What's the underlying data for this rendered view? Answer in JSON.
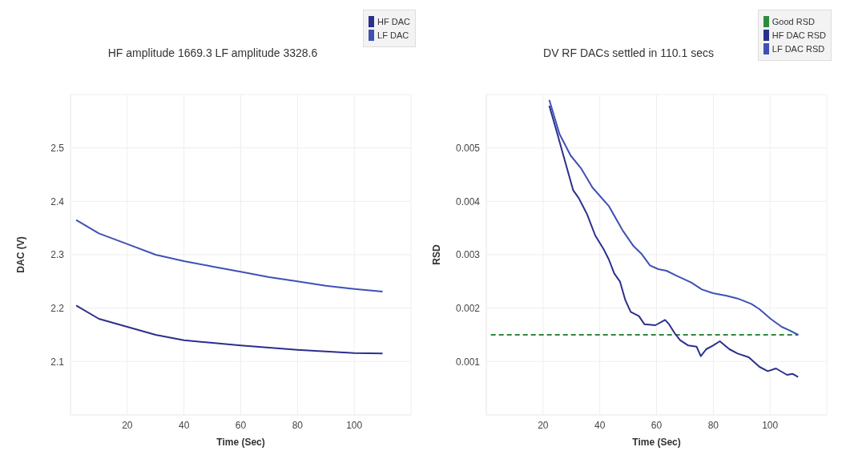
{
  "chart_data": [
    {
      "type": "line",
      "title": "HF amplitude 1669.3 LF amplitude 3328.6",
      "xlabel": "Time (Sec)",
      "ylabel": "DAC (V)",
      "xlim": [
        0,
        120
      ],
      "xticks": [
        20,
        40,
        60,
        80,
        100
      ],
      "ylim": [
        2.0,
        2.6
      ],
      "yticks": [
        2.1,
        2.2,
        2.3,
        2.4,
        2.5
      ],
      "grid": true,
      "legend": "top right",
      "series": [
        {
          "name": "HF DAC",
          "color": "#2b2f8c",
          "x": [
            2,
            10,
            20,
            30,
            40,
            50,
            60,
            70,
            80,
            90,
            100,
            110
          ],
          "values": [
            2.205,
            2.18,
            2.165,
            2.15,
            2.14,
            2.135,
            2.13,
            2.126,
            2.122,
            2.119,
            2.116,
            2.115
          ]
        },
        {
          "name": "LF DAC",
          "color": "#3f51b5",
          "x": [
            2,
            10,
            20,
            30,
            40,
            50,
            60,
            70,
            80,
            90,
            100,
            110
          ],
          "values": [
            2.365,
            2.34,
            2.32,
            2.3,
            2.288,
            2.278,
            2.268,
            2.258,
            2.25,
            2.242,
            2.236,
            2.231
          ]
        }
      ]
    },
    {
      "type": "line",
      "title": "DV RF DACs settled in 110.1 secs",
      "xlabel": "Time (Sec)",
      "ylabel": "RSD",
      "xlim": [
        0,
        120
      ],
      "xticks": [
        20,
        40,
        60,
        80,
        100
      ],
      "ylim": [
        0,
        0.006
      ],
      "yticks": [
        0.001,
        0.002,
        0.003,
        0.004,
        0.005
      ],
      "grid": true,
      "legend": "top right",
      "series": [
        {
          "name": "Good RSD",
          "color": "#2e8b3e",
          "line_style": "dashed",
          "x": [
            1.6,
            110
          ],
          "values": [
            0.0015,
            0.0015
          ]
        },
        {
          "name": "HF DAC RSD",
          "color": "#2b2f8c",
          "x": [
            22.2,
            24.8,
            27.7,
            30.6,
            32.6,
            35.5,
            38.4,
            41.3,
            43.2,
            45.1,
            47.1,
            49,
            50.9,
            53.8,
            55.7,
            59.6,
            63,
            64.4,
            66.4,
            68.3,
            71.2,
            74.1,
            75.6,
            77.5,
            79.9,
            82.3,
            85.7,
            88.6,
            92.5,
            96.3,
            99.2,
            102.1,
            106,
            107.9,
            109.9
          ],
          "values": [
            0.00579,
            0.00531,
            0.00476,
            0.00421,
            0.00406,
            0.00376,
            0.00336,
            0.00311,
            0.00291,
            0.00265,
            0.0025,
            0.00215,
            0.00193,
            0.00185,
            0.0017,
            0.00168,
            0.00178,
            0.0017,
            0.00153,
            0.0014,
            0.0013,
            0.00128,
            0.0011,
            0.00123,
            0.0013,
            0.00138,
            0.00123,
            0.00115,
            0.00108,
            0.0009,
            0.00082,
            0.00087,
            0.00075,
            0.00077,
            0.00071
          ]
        },
        {
          "name": "LF DAC RSD",
          "color": "#3f51b5",
          "x": [
            22.2,
            25.8,
            29.7,
            33.5,
            37.4,
            43.2,
            48,
            51.9,
            54.8,
            57.7,
            60.6,
            63.5,
            67.3,
            72.2,
            76,
            79.9,
            84.7,
            88.6,
            93.4,
            96.3,
            100.2,
            104.1,
            107,
            109.9
          ],
          "values": [
            0.0059,
            0.00526,
            0.00486,
            0.00461,
            0.00426,
            0.00391,
            0.00346,
            0.00316,
            0.00301,
            0.0028,
            0.00273,
            0.0027,
            0.0026,
            0.00248,
            0.00235,
            0.00228,
            0.00223,
            0.00218,
            0.00208,
            0.00198,
            0.0018,
            0.00165,
            0.00158,
            0.0015
          ]
        }
      ]
    }
  ]
}
